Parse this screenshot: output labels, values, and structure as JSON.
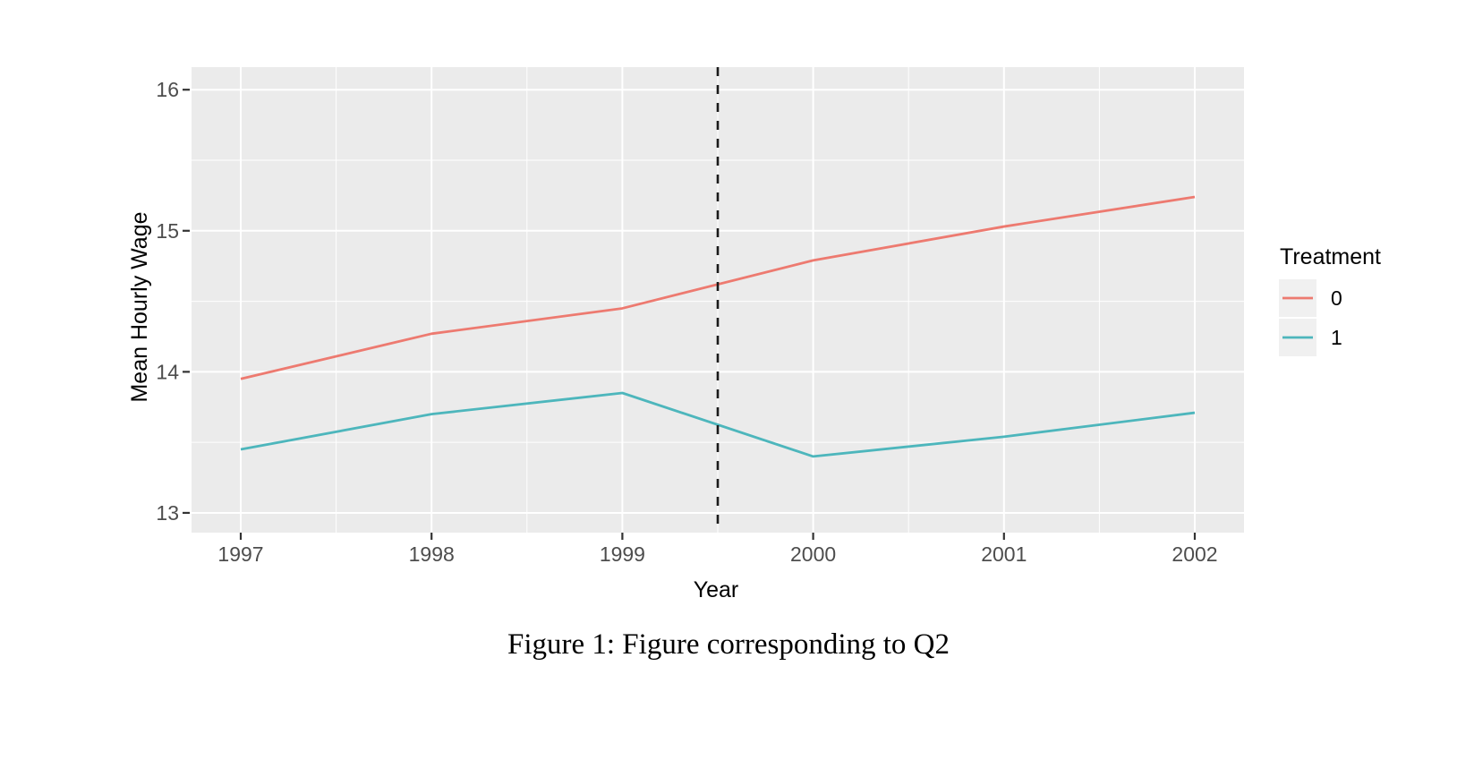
{
  "caption": {
    "text": "Figure 1: Figure corresponding to Q2"
  },
  "chart_data": {
    "type": "line",
    "title": "",
    "xlabel": "Year",
    "ylabel": "Mean Hourly Wage",
    "x": [
      1997,
      1998,
      1999,
      2000,
      2001,
      2002
    ],
    "series": [
      {
        "name": "0",
        "color": "#ED7A70",
        "values": [
          13.95,
          14.27,
          14.45,
          14.79,
          15.03,
          15.24
        ]
      },
      {
        "name": "1",
        "color": "#4DB6BC",
        "values": [
          13.45,
          13.7,
          13.85,
          13.4,
          13.54,
          13.71
        ]
      }
    ],
    "x_ticks": [
      "1997",
      "1998",
      "1999",
      "2000",
      "2001",
      "2002"
    ],
    "y_ticks": [
      "13",
      "14",
      "15",
      "16"
    ],
    "y_major": [
      13,
      14,
      15,
      16
    ],
    "y_minor": [
      13.5,
      14.5,
      15.5
    ],
    "x_minor": [
      1997.5,
      1998.5,
      1999.5,
      2000.5,
      2001.5
    ],
    "xlim": [
      1996.742,
      2002.258
    ],
    "ylim": [
      12.86,
      16.16
    ],
    "vline": {
      "x": 1999.5,
      "style": "dashed",
      "color": "#1A1A1A"
    },
    "legend": {
      "title": "Treatment",
      "position": "right",
      "entries": [
        {
          "label": "0"
        },
        {
          "label": "1"
        }
      ]
    },
    "grid": true,
    "colors": {
      "panel_bg": "#EBEBEB",
      "grid": "#FFFFFF",
      "tick_text": "#4D4D4D",
      "axis_title": "#000000",
      "tick_mark": "#333333",
      "legend_key_bg": "#F0F0F0"
    }
  }
}
